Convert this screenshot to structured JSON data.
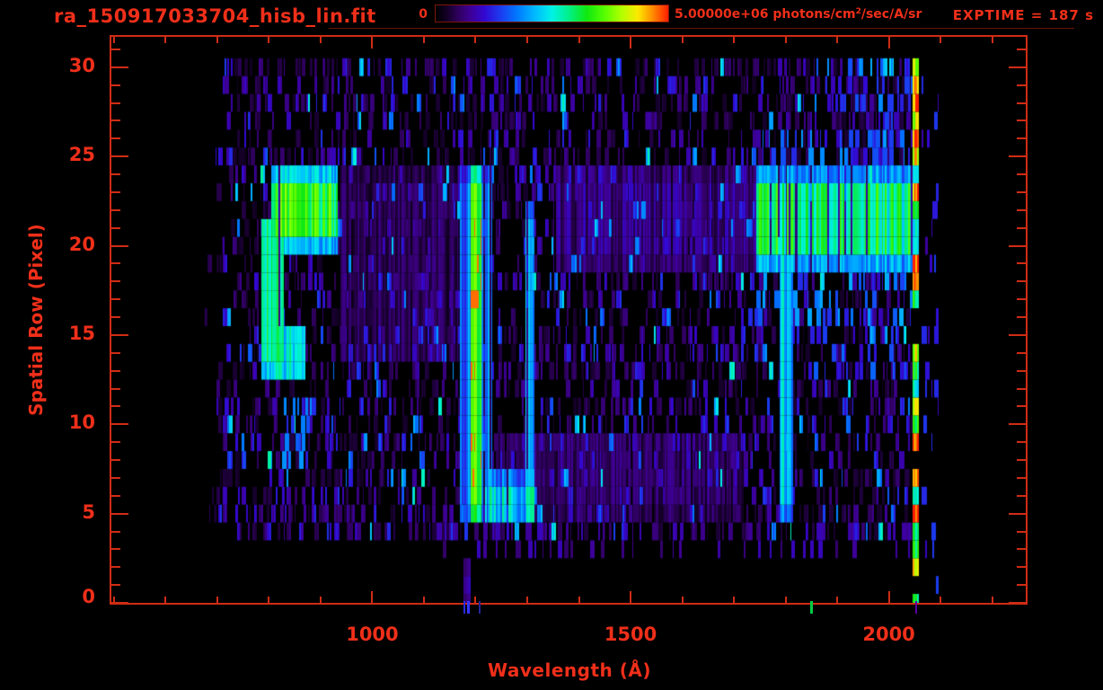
{
  "header": {
    "title": "ra_150917033704_hisb_lin.fit",
    "colorbar_min_label": "0",
    "colorbar_max_value": "5.00000e+06",
    "unit_prefix": " photons/cm",
    "unit_sup": "2",
    "unit_suffix": "/sec/A/sr",
    "exptime_label": "EXPTIME = 187 s"
  },
  "colors": {
    "text": "#ef2f1a",
    "axis": "#d02c15",
    "background": "#000000",
    "colorbar_border": "#7d1608"
  },
  "chart_data": {
    "type": "heatmap",
    "title": "ra_150917033704_hisb_lin.fit",
    "xlabel": "Wavelength (Å)",
    "ylabel": "Spatial Row (Pixel)",
    "x_range_axis": [
      495,
      2265
    ],
    "y_range_axis": [
      0,
      31.7
    ],
    "x_ticks": [
      1000,
      1500,
      2000
    ],
    "x_minor_step": 100,
    "y_ticks": [
      0,
      5,
      10,
      15,
      20,
      25,
      30
    ],
    "y_minor_step": 1,
    "rows": 31,
    "bin_angstrom": 3,
    "data_wavelength_range": [
      670,
      2046
    ],
    "exptime_seconds": 187,
    "colorbar": {
      "min": 0,
      "max": 5000000,
      "min_label": "0",
      "max_label": "5.00000e+06 photons/cm2/sec/A/sr",
      "units": "photons/cm^2/sec/A/sr"
    },
    "colormap_stops": [
      [
        0.0,
        "#000000"
      ],
      [
        0.05,
        "#140028"
      ],
      [
        0.1,
        "#300060"
      ],
      [
        0.15,
        "#3e0096"
      ],
      [
        0.21,
        "#3208d2"
      ],
      [
        0.28,
        "#1b3cf0"
      ],
      [
        0.35,
        "#0078ff"
      ],
      [
        0.43,
        "#00bcff"
      ],
      [
        0.5,
        "#00f2e6"
      ],
      [
        0.57,
        "#00f08c"
      ],
      [
        0.65,
        "#10e810"
      ],
      [
        0.73,
        "#5aff00"
      ],
      [
        0.8,
        "#b4ff00"
      ],
      [
        0.87,
        "#fce800"
      ],
      [
        0.93,
        "#ff9000"
      ],
      [
        1.0,
        "#ff1e00"
      ]
    ],
    "seed": 20150917,
    "noise": {
      "row_start": 4,
      "row_end": 30,
      "density": [
        0.38,
        0.66
      ],
      "start_lambda": [
        668,
        745
      ],
      "end_lambda": 2046,
      "base_intensity": [
        0.05,
        0.24
      ],
      "bright_chance": 0.09,
      "bright_intensity": [
        0.26,
        0.46
      ]
    },
    "features": [
      {
        "name": "blob-arc-top",
        "type": "band",
        "l": [
          806,
          934
        ],
        "r": [
          20.3,
          23.8
        ],
        "amp": 0.64,
        "jitter": 0.22
      },
      {
        "name": "blob-left-column",
        "type": "band",
        "l": [
          786,
          828
        ],
        "r": [
          13.0,
          21.5
        ],
        "amp": 0.6,
        "jitter": 0.2
      },
      {
        "name": "blob-bottom-tail",
        "type": "band",
        "l": [
          798,
          872
        ],
        "r": [
          12.6,
          15.4
        ],
        "amp": 0.48,
        "jitter": 0.25
      },
      {
        "name": "cyan-patch-below-blob",
        "type": "dashes",
        "l": [
          822,
          892
        ],
        "r": [
          8.4,
          11.2
        ],
        "amp": 0.34,
        "density": 0.6
      },
      {
        "name": "lyman-alpha-halo",
        "type": "band",
        "l": [
          1172,
          1234
        ],
        "r": [
          4.8,
          24.0
        ],
        "amp": 0.34,
        "jitter": 0.3
      },
      {
        "name": "lyman-alpha-core",
        "type": "band",
        "l": [
          1188,
          1214
        ],
        "r": [
          4.8,
          24.0
        ],
        "amp": 0.66,
        "jitter": 0.18
      },
      {
        "name": "lyman-alpha-hot-mid",
        "type": "band",
        "l": [
          1190,
          1210
        ],
        "r": [
          7.0,
          21.0
        ],
        "amp": 0.24,
        "jitter": 0.28
      },
      {
        "name": "lyman-alpha-rows-0-2",
        "type": "band",
        "l": [
          1176,
          1192
        ],
        "r": [
          0.0,
          2.0
        ],
        "amp": 0.22,
        "jitter": 0.4
      },
      {
        "name": "u-bottom-bridge",
        "type": "band",
        "l": [
          1192,
          1314
        ],
        "r": [
          4.6,
          6.9
        ],
        "amp": 0.46,
        "jitter": 0.3
      },
      {
        "name": "oi-1304-column",
        "type": "band",
        "l": [
          1296,
          1314
        ],
        "r": [
          4.8,
          22.0
        ],
        "amp": 0.42,
        "jitter": 0.22
      },
      {
        "name": "faint-band-lower-mid",
        "type": "band",
        "l": [
          1240,
          1720
        ],
        "r": [
          5.0,
          9.5
        ],
        "amp": 0.1,
        "jitter": 0.55
      },
      {
        "name": "faint-band-left-mid",
        "type": "band",
        "l": [
          940,
          1180
        ],
        "r": [
          13.5,
          24.0
        ],
        "amp": 0.09,
        "jitter": 0.55
      },
      {
        "name": "faint-band-pre-bright",
        "type": "band",
        "l": [
          1350,
          1745
        ],
        "r": [
          19.0,
          24.0
        ],
        "amp": 0.13,
        "jitter": 0.55
      },
      {
        "name": "stem-column-1800",
        "type": "band",
        "l": [
          1790,
          1816
        ],
        "r": [
          5.0,
          19.5
        ],
        "amp": 0.46,
        "jitter": 0.3
      },
      {
        "name": "bright-band-top",
        "type": "band",
        "l": [
          1745,
          2048
        ],
        "r": [
          19.2,
          23.7
        ],
        "amp": 0.58,
        "jitter": 0.25
      },
      {
        "name": "bright-band-core",
        "type": "band",
        "l": [
          1855,
          2012
        ],
        "r": [
          20.0,
          23.5
        ],
        "amp": 0.14,
        "jitter": 0.3
      },
      {
        "name": "band-fringe-mid",
        "type": "dashes",
        "l": [
          1740,
          2046
        ],
        "r": [
          16.0,
          19.2
        ],
        "amp": 0.32,
        "density": 0.55
      },
      {
        "name": "band-fringe-low",
        "type": "dashes",
        "l": [
          1845,
          2042
        ],
        "r": [
          13.0,
          16.0
        ],
        "amp": 0.26,
        "density": 0.45
      },
      {
        "name": "band-fringe-above",
        "type": "dashes",
        "l": [
          1755,
          2046
        ],
        "r": [
          24.0,
          25.6
        ],
        "amp": 0.3,
        "density": 0.5
      },
      {
        "name": "upper-right-green",
        "type": "dashes",
        "l": [
          1880,
          2046
        ],
        "r": [
          26.0,
          30.5
        ],
        "amp": 0.24,
        "density": 0.5
      },
      {
        "name": "row3-sparse",
        "type": "dashes",
        "l": [
          1120,
          2044
        ],
        "r": [
          3.0,
          4.0
        ],
        "amp": 0.15,
        "density": 0.35
      },
      {
        "name": "detector-edge-column",
        "type": "edge",
        "l": [
          2048,
          2060
        ],
        "r": [
          0,
          31
        ],
        "amp": 1.0
      },
      {
        "name": "post-edge-dashes",
        "type": "dashes",
        "l": [
          2064,
          2098
        ],
        "r": [
          0.0,
          31.0
        ],
        "amp": 0.22,
        "density": 0.3
      },
      {
        "name": "red-sparks-lyman",
        "type": "sparks",
        "l": [
          1190,
          1212
        ],
        "rowsList": [
          7,
          8,
          9,
          11,
          13,
          17,
          18,
          19,
          20,
          21
        ],
        "amp": 0.95,
        "count": 18
      }
    ],
    "bleed_lines": [
      {
        "wavelength": 1178,
        "color": "#2a2ae6",
        "width": 2
      },
      {
        "wavelength": 1186,
        "color": "#3333ff",
        "width": 3
      },
      {
        "wavelength": 1207,
        "color": "#24249a",
        "width": 2
      },
      {
        "wavelength": 1850,
        "color": "#00cc44",
        "width": 3
      },
      {
        "wavelength": 2053,
        "color": "#5a00a2",
        "width": 2
      }
    ]
  }
}
